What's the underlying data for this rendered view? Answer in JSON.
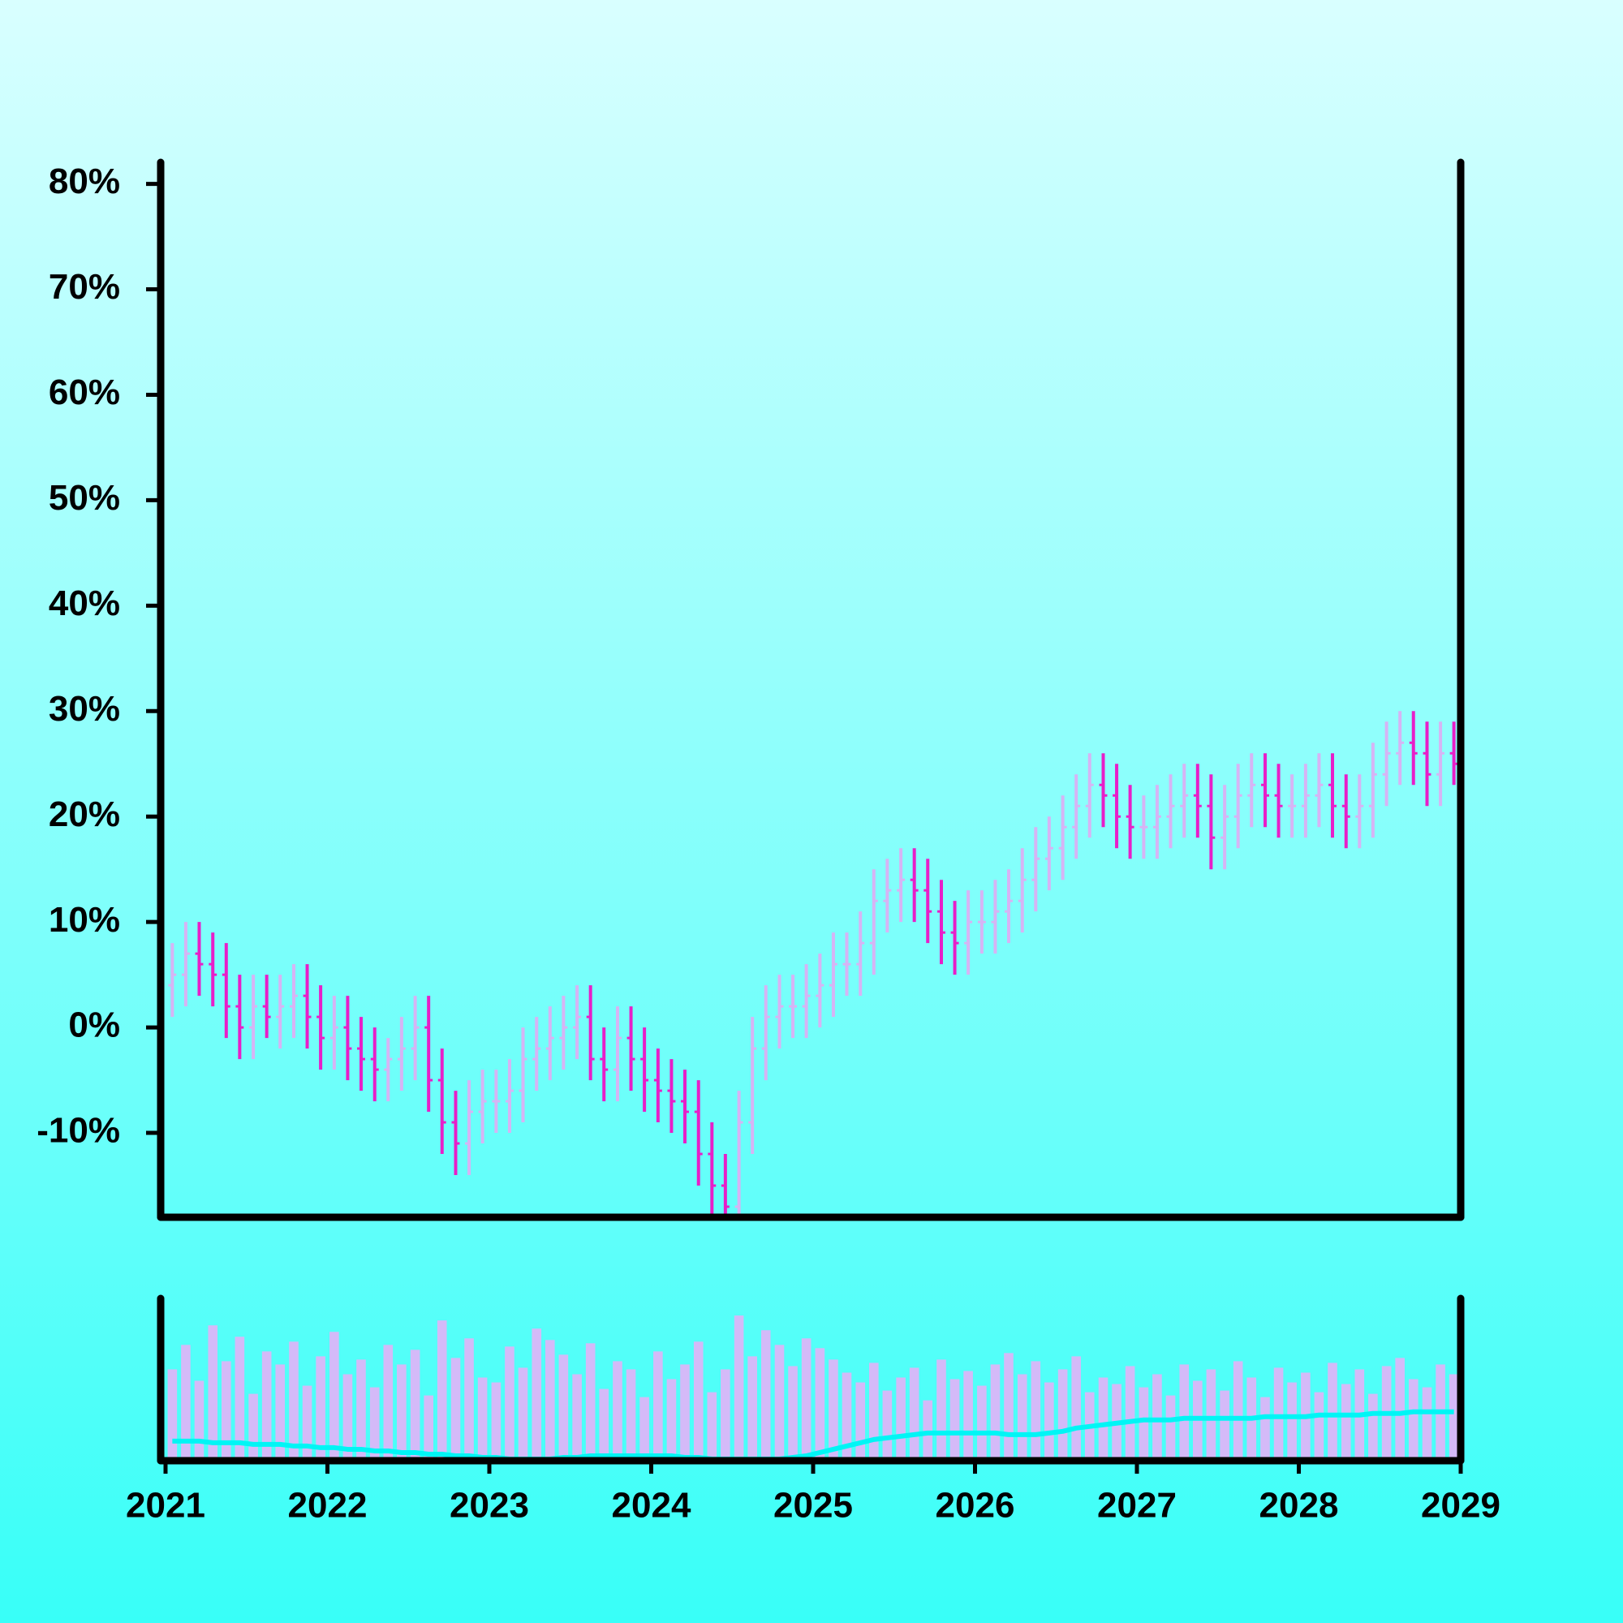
{
  "chart_data": [
    {
      "type": "ohlc",
      "xlim": [
        2020.97,
        2029
      ],
      "ylim": [
        -18,
        82.2
      ],
      "yticks": [
        {
          "value": -10,
          "label": "-10%"
        },
        {
          "value": 0,
          "label": "0%"
        },
        {
          "value": 10,
          "label": "10%"
        },
        {
          "value": 20,
          "label": "20%"
        },
        {
          "value": 30,
          "label": "30%"
        },
        {
          "value": 40,
          "label": "40%"
        },
        {
          "value": 50,
          "label": "50%"
        },
        {
          "value": 60,
          "label": "60%"
        },
        {
          "value": 70,
          "label": "70%"
        },
        {
          "value": 80,
          "label": "80%"
        }
      ],
      "up_color": "#d6b4f4",
      "down_color": "#e81ec8",
      "x": [
        2021.042,
        2021.125,
        2021.208,
        2021.292,
        2021.375,
        2021.458,
        2021.542,
        2021.625,
        2021.708,
        2021.792,
        2021.875,
        2021.958,
        2022.042,
        2022.125,
        2022.208,
        2022.292,
        2022.375,
        2022.458,
        2022.542,
        2022.625,
        2022.708,
        2022.792,
        2022.875,
        2022.958,
        2023.042,
        2023.125,
        2023.208,
        2023.292,
        2023.375,
        2023.458,
        2023.542,
        2023.625,
        2023.708,
        2023.792,
        2023.875,
        2023.958,
        2024.042,
        2024.125,
        2024.208,
        2024.292,
        2024.375,
        2024.458,
        2024.542,
        2024.625,
        2024.708,
        2024.792,
        2024.875,
        2024.958,
        2025.042,
        2025.125,
        2025.208,
        2025.292,
        2025.375,
        2025.458,
        2025.542,
        2025.625,
        2025.708,
        2025.792,
        2025.875,
        2025.958,
        2026.042,
        2026.125,
        2026.208,
        2026.292,
        2026.375,
        2026.458,
        2026.542,
        2026.625,
        2026.708,
        2026.792,
        2026.875,
        2026.958,
        2027.042,
        2027.125,
        2027.208,
        2027.292,
        2027.375,
        2027.458,
        2027.542,
        2027.625,
        2027.708,
        2027.792,
        2027.875,
        2027.958,
        2028.042,
        2028.125,
        2028.208,
        2028.292,
        2028.375,
        2028.458,
        2028.542,
        2028.625,
        2028.708,
        2028.792,
        2028.875,
        2028.958
      ],
      "open": [
        4,
        5,
        7,
        6,
        5,
        2,
        0,
        2,
        1,
        2,
        3,
        1,
        -1,
        0,
        -2,
        -3,
        -4,
        -3,
        -2,
        0,
        -5,
        -9,
        -11,
        -8,
        -7,
        -7,
        -6,
        -3,
        -2,
        -1,
        0,
        1,
        -3,
        -4,
        -1,
        -3,
        -5,
        -6,
        -7,
        -8,
        -12,
        -15,
        -17,
        -9,
        -2,
        1,
        2,
        2,
        3,
        4,
        6,
        6,
        8,
        12,
        13,
        14,
        13,
        11,
        9,
        8,
        10,
        10,
        11,
        12,
        14,
        16,
        17,
        19,
        21,
        23,
        22,
        20,
        19,
        19,
        20,
        21,
        22,
        21,
        18,
        20,
        22,
        23,
        22,
        21,
        21,
        22,
        23,
        21,
        20,
        21,
        24,
        26,
        27,
        26,
        24,
        26
      ],
      "high": [
        8,
        10,
        10,
        9,
        8,
        5,
        5,
        5,
        5,
        6,
        6,
        4,
        3,
        3,
        1,
        0,
        -1,
        1,
        3,
        3,
        -2,
        -6,
        -5,
        -4,
        -4,
        -3,
        0,
        1,
        2,
        3,
        4,
        4,
        0,
        2,
        2,
        0,
        -2,
        -3,
        -4,
        -5,
        -9,
        -12,
        -6,
        1,
        4,
        5,
        5,
        6,
        7,
        9,
        9,
        11,
        15,
        16,
        17,
        17,
        16,
        14,
        12,
        13,
        13,
        14,
        15,
        17,
        19,
        20,
        22,
        24,
        26,
        26,
        25,
        23,
        22,
        23,
        24,
        25,
        25,
        24,
        23,
        25,
        26,
        26,
        25,
        24,
        25,
        26,
        26,
        24,
        24,
        27,
        29,
        30,
        30,
        29,
        29,
        29
      ],
      "low": [
        1,
        2,
        3,
        2,
        -1,
        -3,
        -3,
        -1,
        -2,
        -1,
        -2,
        -4,
        -4,
        -5,
        -6,
        -7,
        -7,
        -6,
        -5,
        -8,
        -12,
        -14,
        -14,
        -11,
        -10,
        -10,
        -9,
        -6,
        -5,
        -4,
        -3,
        -5,
        -7,
        -7,
        -6,
        -8,
        -9,
        -10,
        -11,
        -15,
        -18,
        -20,
        -20,
        -12,
        -5,
        -2,
        -1,
        -1,
        0,
        1,
        3,
        3,
        5,
        9,
        10,
        10,
        8,
        6,
        5,
        5,
        7,
        7,
        8,
        9,
        11,
        13,
        14,
        16,
        18,
        19,
        17,
        16,
        16,
        16,
        17,
        18,
        18,
        15,
        15,
        17,
        19,
        19,
        18,
        18,
        18,
        19,
        18,
        17,
        17,
        18,
        21,
        23,
        23,
        21,
        21,
        23
      ],
      "close": [
        5,
        7,
        6,
        5,
        2,
        0,
        2,
        1,
        2,
        3,
        1,
        -1,
        0,
        -2,
        -3,
        -4,
        -3,
        -2,
        0,
        -5,
        -9,
        -11,
        -8,
        -7,
        -7,
        -6,
        -3,
        -2,
        -1,
        0,
        1,
        -3,
        -4,
        -1,
        -3,
        -5,
        -6,
        -7,
        -8,
        -12,
        -15,
        -17,
        -9,
        -2,
        1,
        2,
        2,
        3,
        4,
        6,
        6,
        8,
        12,
        13,
        14,
        13,
        11,
        9,
        8,
        10,
        10,
        11,
        12,
        14,
        16,
        17,
        19,
        21,
        23,
        22,
        20,
        19,
        19,
        20,
        21,
        22,
        21,
        18,
        20,
        22,
        23,
        22,
        21,
        21,
        22,
        23,
        21,
        20,
        21,
        24,
        26,
        27,
        26,
        24,
        26,
        25
      ]
    },
    {
      "type": "volume",
      "xlim": [
        2020.97,
        2029
      ],
      "ylim": [
        0,
        100
      ],
      "xticks": [
        2021,
        2022,
        2023,
        2024,
        2025,
        2026,
        2027,
        2028,
        2029
      ],
      "color": "#d4baf8",
      "line_color": "#00f5f5",
      "x": [
        2021.042,
        2021.125,
        2021.208,
        2021.292,
        2021.375,
        2021.458,
        2021.542,
        2021.625,
        2021.708,
        2021.792,
        2021.875,
        2021.958,
        2022.042,
        2022.125,
        2022.208,
        2022.292,
        2022.375,
        2022.458,
        2022.542,
        2022.625,
        2022.708,
        2022.792,
        2022.875,
        2022.958,
        2023.042,
        2023.125,
        2023.208,
        2023.292,
        2023.375,
        2023.458,
        2023.542,
        2023.625,
        2023.708,
        2023.792,
        2023.875,
        2023.958,
        2024.042,
        2024.125,
        2024.208,
        2024.292,
        2024.375,
        2024.458,
        2024.542,
        2024.625,
        2024.708,
        2024.792,
        2024.875,
        2024.958,
        2025.042,
        2025.125,
        2025.208,
        2025.292,
        2025.375,
        2025.458,
        2025.542,
        2025.625,
        2025.708,
        2025.792,
        2025.875,
        2025.958,
        2026.042,
        2026.125,
        2026.208,
        2026.292,
        2026.375,
        2026.458,
        2026.542,
        2026.625,
        2026.708,
        2026.792,
        2026.875,
        2026.958,
        2027.042,
        2027.125,
        2027.208,
        2027.292,
        2027.375,
        2027.458,
        2027.542,
        2027.625,
        2027.708,
        2027.792,
        2027.875,
        2027.958,
        2028.042,
        2028.125,
        2028.208,
        2028.292,
        2028.375,
        2028.458,
        2028.542,
        2028.625,
        2028.708,
        2028.792,
        2028.875,
        2028.958
      ],
      "values": [
        55,
        70,
        48,
        82,
        60,
        75,
        40,
        66,
        58,
        72,
        45,
        63,
        78,
        52,
        61,
        44,
        70,
        58,
        67,
        39,
        85,
        62,
        74,
        50,
        47,
        69,
        56,
        80,
        73,
        64,
        52,
        71,
        43,
        60,
        55,
        38,
        66,
        49,
        58,
        72,
        41,
        55,
        88,
        63,
        79,
        70,
        57,
        74,
        68,
        61,
        53,
        47,
        59,
        42,
        50,
        56,
        36,
        61,
        49,
        54,
        45,
        58,
        65,
        52,
        60,
        47,
        55,
        63,
        41,
        50,
        46,
        57,
        44,
        52,
        39,
        58,
        48,
        55,
        42,
        60,
        50,
        38,
        56,
        47,
        53,
        41,
        59,
        46,
        55,
        40,
        57,
        62,
        49,
        44,
        58,
        52
      ],
      "moving_average": [
        11,
        11,
        11,
        10,
        10,
        10,
        9,
        9,
        9,
        8,
        8,
        7,
        7,
        6,
        6,
        5,
        5,
        4,
        4,
        3,
        3,
        2,
        2,
        1,
        1,
        0,
        0,
        0,
        0,
        1,
        1,
        2,
        2,
        2,
        2,
        2,
        2,
        2,
        1,
        1,
        0,
        0,
        0,
        0,
        0,
        0,
        1,
        2,
        4,
        6,
        8,
        10,
        12,
        13,
        14,
        15,
        16,
        16,
        16,
        16,
        16,
        16,
        15,
        15,
        15,
        16,
        17,
        19,
        20,
        21,
        22,
        23,
        24,
        24,
        24,
        25,
        25,
        25,
        25,
        25,
        25,
        26,
        26,
        26,
        26,
        27,
        27,
        27,
        27,
        28,
        28,
        28,
        29,
        29,
        29,
        29
      ]
    }
  ]
}
